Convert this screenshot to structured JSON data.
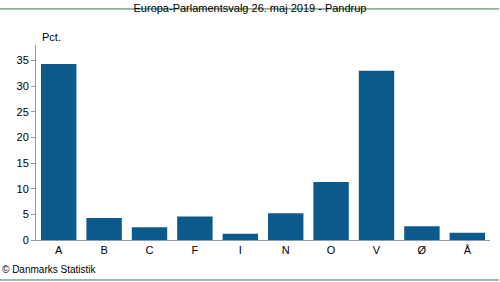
{
  "chart_data": {
    "type": "bar",
    "title": "Europa-Parlamentsvalg 26. maj 2019 - Pandrup",
    "y_label": "Pct.",
    "categories": [
      "A",
      "B",
      "C",
      "F",
      "I",
      "N",
      "O",
      "V",
      "Ø",
      "Å"
    ],
    "values": [
      34.3,
      4.3,
      2.5,
      4.6,
      1.2,
      5.2,
      11.3,
      33.0,
      2.7,
      1.4
    ],
    "color": "#0c5a8c",
    "ylim": [
      0,
      38
    ],
    "yticks": [
      0,
      5,
      10,
      15,
      20,
      25,
      30,
      35
    ],
    "grid": false,
    "annotations": [
      "© Danmarks Statistik"
    ]
  }
}
